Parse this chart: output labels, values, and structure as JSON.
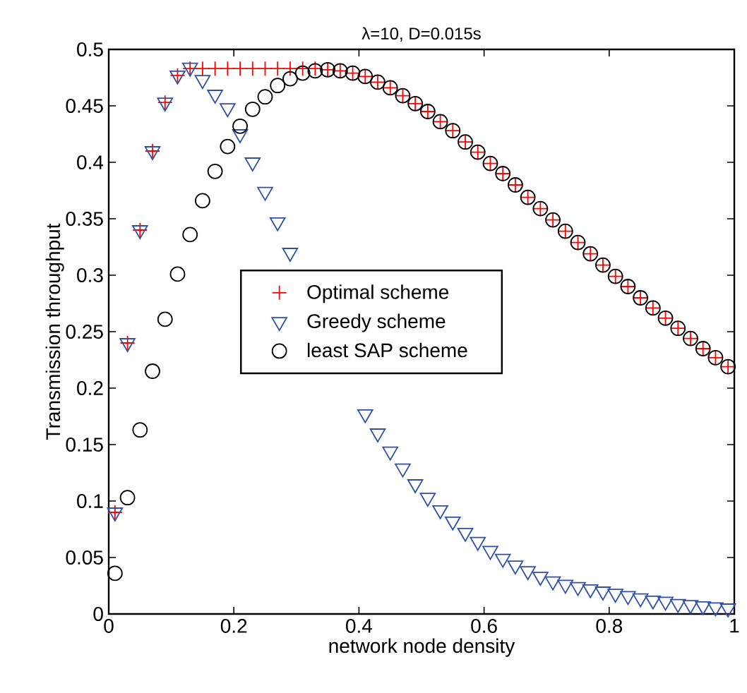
{
  "chart_data": {
    "type": "scatter",
    "title": "λ=10, D=0.015s",
    "xlabel": "network node density",
    "ylabel": "Transmission throughput",
    "x": [
      0.01,
      0.03,
      0.05,
      0.07,
      0.09,
      0.11,
      0.13,
      0.15,
      0.17,
      0.19,
      0.21,
      0.23,
      0.25,
      0.27,
      0.29,
      0.31,
      0.33,
      0.35,
      0.37,
      0.39,
      0.41,
      0.43,
      0.45,
      0.47,
      0.49,
      0.51,
      0.53,
      0.55,
      0.57,
      0.59,
      0.61,
      0.63,
      0.65,
      0.67,
      0.69,
      0.71,
      0.73,
      0.75,
      0.77,
      0.79,
      0.81,
      0.83,
      0.85,
      0.87,
      0.89,
      0.91,
      0.93,
      0.95,
      0.97,
      0.99
    ],
    "series": [
      {
        "name": "Optimal scheme",
        "color": "#ff0000",
        "marker": "cross",
        "values": [
          0.09,
          0.24,
          0.34,
          0.41,
          0.453,
          0.477,
          0.483,
          0.483,
          0.483,
          0.483,
          0.483,
          0.483,
          0.483,
          0.483,
          0.483,
          0.483,
          0.483,
          0.482,
          0.481,
          0.479,
          0.476,
          0.471,
          0.466,
          0.459,
          0.452,
          0.445,
          0.436,
          0.428,
          0.418,
          0.409,
          0.399,
          0.39,
          0.38,
          0.369,
          0.359,
          0.349,
          0.339,
          0.329,
          0.319,
          0.309,
          0.299,
          0.29,
          0.28,
          0.271,
          0.262,
          0.253,
          0.244,
          0.235,
          0.227,
          0.219
        ]
      },
      {
        "name": "Greedy scheme",
        "color": "#3050a8",
        "marker": "triangle",
        "values": [
          0.09,
          0.24,
          0.34,
          0.41,
          0.453,
          0.477,
          0.484,
          0.473,
          0.46,
          0.448,
          0.425,
          0.4,
          0.374,
          0.347,
          0.32,
          null,
          null,
          null,
          null,
          null,
          0.177,
          0.16,
          0.144,
          0.129,
          0.115,
          0.103,
          0.092,
          0.082,
          0.072,
          0.064,
          0.056,
          0.049,
          0.043,
          0.038,
          0.033,
          0.029,
          0.026,
          0.024,
          0.022,
          0.02,
          0.018,
          0.016,
          0.014,
          0.012,
          0.011,
          0.009,
          0.008,
          0.007,
          0.006,
          0.005
        ]
      },
      {
        "name": "least SAP scheme",
        "color": "#000000",
        "marker": "circle",
        "values": [
          0.036,
          0.103,
          0.163,
          0.215,
          0.261,
          0.301,
          0.336,
          0.366,
          0.392,
          0.414,
          0.432,
          0.447,
          0.458,
          0.468,
          0.474,
          0.479,
          0.481,
          0.482,
          0.481,
          0.479,
          0.476,
          0.471,
          0.466,
          0.459,
          0.452,
          0.445,
          0.436,
          0.428,
          0.418,
          0.409,
          0.399,
          0.39,
          0.38,
          0.369,
          0.359,
          0.349,
          0.339,
          0.329,
          0.319,
          0.309,
          0.299,
          0.29,
          0.28,
          0.271,
          0.262,
          0.253,
          0.244,
          0.235,
          0.227,
          0.219
        ]
      }
    ],
    "xlim": [
      0,
      1
    ],
    "ylim": [
      0,
      0.5
    ],
    "xticks": [
      0,
      0.2,
      0.4,
      0.6,
      0.8,
      1
    ],
    "yticks": [
      0,
      0.05,
      0.1,
      0.15,
      0.2,
      0.25,
      0.3,
      0.35,
      0.4,
      0.45,
      0.5
    ],
    "legend": "center",
    "grid": false
  }
}
